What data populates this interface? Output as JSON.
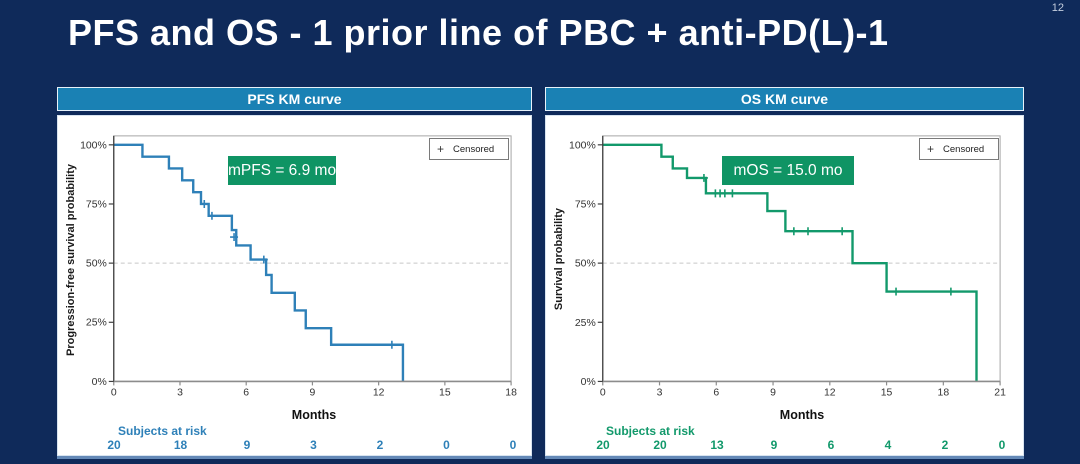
{
  "slide": {
    "title": "PFS and OS - 1 prior line of PBC + anti-PD(L)-1",
    "page_number": "12"
  },
  "colors": {
    "background": "#0F2A5A",
    "header_bar": "#1A81B4",
    "pfs_line": "#2E80B8",
    "os_line": "#12996B",
    "annotation_bg": "#0F9464",
    "frame": "#A6A6A6",
    "axis": "#3F3F3F",
    "axis_gray": "#8C8C8C",
    "grid": "#C8C8C8",
    "tick_text": "#333333"
  },
  "legend": {
    "symbol": "+",
    "label": "Censored"
  },
  "chart_data": [
    {
      "id": "pfs",
      "type": "line",
      "subtype": "kaplan-meier-step",
      "panel_title": "PFS KM curve",
      "annotation": "mPFS = 6.9 mo",
      "xlabel": "Months",
      "ylabel": "Progression-free survival probability",
      "xlim": [
        0,
        18
      ],
      "xticks": [
        0,
        3,
        6,
        9,
        12,
        15,
        18
      ],
      "ytick_values": [
        0,
        25,
        50,
        75,
        100
      ],
      "ytick_labels": [
        "0%",
        "25%",
        "50%",
        "75%",
        "100%"
      ],
      "grid_y": 50,
      "line_color": "#2E80B8",
      "steps": [
        [
          0,
          100
        ],
        [
          1.3,
          100
        ],
        [
          1.3,
          95
        ],
        [
          2.5,
          95
        ],
        [
          2.5,
          90
        ],
        [
          3.1,
          90
        ],
        [
          3.1,
          85
        ],
        [
          3.6,
          85
        ],
        [
          3.6,
          80
        ],
        [
          3.95,
          80
        ],
        [
          3.95,
          75
        ],
        [
          4.3,
          75
        ],
        [
          4.3,
          70
        ],
        [
          5.35,
          70
        ],
        [
          5.35,
          64
        ],
        [
          5.55,
          64
        ],
        [
          5.55,
          57.5
        ],
        [
          6.2,
          57.5
        ],
        [
          6.2,
          51.5
        ],
        [
          6.9,
          51.5
        ],
        [
          6.9,
          45
        ],
        [
          7.15,
          45
        ],
        [
          7.15,
          37.5
        ],
        [
          8.2,
          37.5
        ],
        [
          8.2,
          30
        ],
        [
          8.7,
          30
        ],
        [
          8.7,
          22.5
        ],
        [
          9.85,
          22.5
        ],
        [
          9.85,
          15.5
        ],
        [
          13.1,
          15.5
        ],
        [
          13.1,
          0
        ]
      ],
      "censor_marks": [
        [
          4.1,
          75
        ],
        [
          4.45,
          70
        ],
        [
          5.45,
          61
        ],
        [
          6.8,
          51.5
        ],
        [
          12.6,
          15.5
        ]
      ],
      "risk_label": "Subjects at risk",
      "risk_times": [
        0,
        3,
        6,
        9,
        12,
        15,
        18
      ],
      "risk_counts": [
        20,
        18,
        9,
        3,
        2,
        0,
        0
      ]
    },
    {
      "id": "os",
      "type": "line",
      "subtype": "kaplan-meier-step",
      "panel_title": "OS KM curve",
      "annotation": "mOS = 15.0 mo",
      "xlabel": "Months",
      "ylabel": "Survival probability",
      "xlim": [
        0,
        21
      ],
      "xticks": [
        0,
        3,
        6,
        9,
        12,
        15,
        18,
        21
      ],
      "ytick_values": [
        0,
        25,
        50,
        75,
        100
      ],
      "ytick_labels": [
        "0%",
        "25%",
        "50%",
        "75%",
        "100%"
      ],
      "grid_y": 50,
      "line_color": "#12996B",
      "steps": [
        [
          0,
          100
        ],
        [
          3.1,
          100
        ],
        [
          3.1,
          95
        ],
        [
          3.7,
          95
        ],
        [
          3.7,
          90
        ],
        [
          4.45,
          90
        ],
        [
          4.45,
          86
        ],
        [
          5.45,
          86
        ],
        [
          5.45,
          79.5
        ],
        [
          8.7,
          79.5
        ],
        [
          8.7,
          72
        ],
        [
          9.65,
          72
        ],
        [
          9.65,
          63.5
        ],
        [
          13.2,
          63.5
        ],
        [
          13.2,
          50
        ],
        [
          15.0,
          50
        ],
        [
          15.0,
          38
        ],
        [
          19.75,
          38
        ],
        [
          19.75,
          0
        ]
      ],
      "censor_marks": [
        [
          5.35,
          86
        ],
        [
          5.95,
          79.5
        ],
        [
          6.2,
          79.5
        ],
        [
          6.45,
          79.5
        ],
        [
          6.85,
          79.5
        ],
        [
          10.1,
          63.5
        ],
        [
          10.85,
          63.5
        ],
        [
          12.65,
          63.5
        ],
        [
          15.5,
          38
        ],
        [
          18.4,
          38
        ]
      ],
      "risk_label": "Subjects at risk",
      "risk_times": [
        0,
        3,
        6,
        9,
        12,
        15,
        18,
        21
      ],
      "risk_counts": [
        20,
        20,
        13,
        9,
        6,
        4,
        2,
        0
      ]
    }
  ]
}
